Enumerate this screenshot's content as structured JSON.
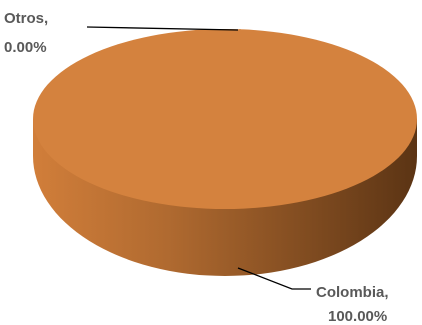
{
  "chart_data": {
    "type": "pie",
    "style": "3d",
    "slices": [
      {
        "label": "Otros",
        "value": 0.0,
        "display": "0.00%"
      },
      {
        "label": "Colombia",
        "value": 100.0,
        "display": "100.00%"
      }
    ],
    "colors": {
      "top": "#D4823E",
      "side_light": "#D17E3A",
      "side_dark": "#5B3414",
      "leader": "#000000",
      "label_text": "#595959"
    },
    "legend": "none"
  }
}
